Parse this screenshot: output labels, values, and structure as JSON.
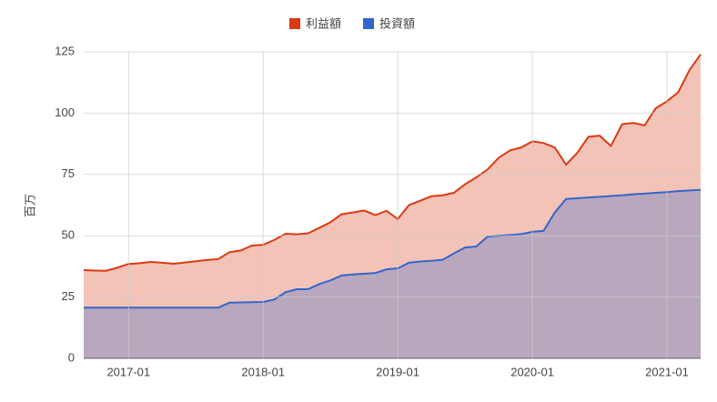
{
  "chart_data": {
    "type": "area",
    "y_label": "百万",
    "x": [
      "2016-09",
      "2016-10",
      "2016-11",
      "2016-12",
      "2017-01",
      "2017-02",
      "2017-03",
      "2017-04",
      "2017-05",
      "2017-06",
      "2017-07",
      "2017-08",
      "2017-09",
      "2017-10",
      "2017-11",
      "2017-12",
      "2018-01",
      "2018-02",
      "2018-03",
      "2018-04",
      "2018-05",
      "2018-06",
      "2018-07",
      "2018-08",
      "2018-09",
      "2018-10",
      "2018-11",
      "2018-12",
      "2019-01",
      "2019-02",
      "2019-03",
      "2019-04",
      "2019-05",
      "2019-06",
      "2019-07",
      "2019-08",
      "2019-09",
      "2019-10",
      "2019-11",
      "2019-12",
      "2020-01",
      "2020-02",
      "2020-03",
      "2020-04",
      "2020-05",
      "2020-06",
      "2020-07",
      "2020-08",
      "2020-09",
      "2020-10",
      "2020-11",
      "2020-12",
      "2021-01",
      "2021-02",
      "2021-03",
      "2021-04"
    ],
    "series": [
      {
        "name": "利益額",
        "color": "#dc3912",
        "values": [
          36,
          35.8,
          35.7,
          37,
          38.5,
          38.8,
          39.3,
          39,
          38.6,
          39.1,
          39.6,
          40.1,
          40.5,
          43.3,
          44,
          46,
          46.3,
          48.3,
          50.8,
          50.6,
          51,
          53.2,
          55.5,
          58.8,
          59.5,
          60.3,
          58.4,
          60.2,
          56.8,
          62.5,
          64.3,
          66.1,
          66.5,
          67.5,
          71,
          73.8,
          77,
          81.8,
          84.8,
          86,
          88.5,
          87.8,
          86,
          79,
          83.8,
          90.4,
          90.8,
          86.6,
          95.5,
          96,
          95,
          102,
          104.8,
          108.5,
          117.5,
          124
        ]
      },
      {
        "name": "投資額",
        "color": "#3366cc",
        "values": [
          20.7,
          20.7,
          20.7,
          20.7,
          20.7,
          20.7,
          20.7,
          20.7,
          20.7,
          20.7,
          20.7,
          20.7,
          20.7,
          22.7,
          22.8,
          22.9,
          23,
          24,
          27,
          28.2,
          28.2,
          30.3,
          31.8,
          33.8,
          34.2,
          34.5,
          34.8,
          36.3,
          36.7,
          39,
          39.5,
          39.8,
          40.2,
          42.8,
          45.2,
          45.6,
          49.6,
          50,
          50.3,
          50.7,
          51.6,
          52,
          59.5,
          65,
          65.3,
          65.6,
          65.9,
          66.2,
          66.5,
          66.9,
          67.2,
          67.5,
          67.8,
          68.2,
          68.5,
          68.7
        ]
      }
    ],
    "xlim": [
      "2016-09",
      "2021-04"
    ],
    "xticks": [
      "2017-01",
      "2018-01",
      "2019-01",
      "2020-01",
      "2021-01"
    ],
    "ylim": [
      0,
      125
    ],
    "yticks": [
      0,
      25,
      50,
      75,
      100,
      125
    ],
    "grid": true,
    "legend": "top"
  }
}
